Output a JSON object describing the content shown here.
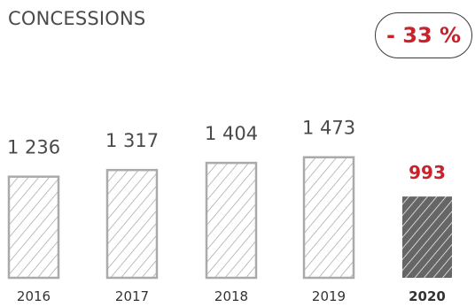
{
  "title": "CONCESSIONS",
  "badge": {
    "text": "- 33 %"
  },
  "colors": {
    "title": "#4a4a4a",
    "bar_stroke": "#aaaaaa",
    "hatch_light": "#9a9a9a",
    "highlight_bar": "#666666",
    "highlight_label": "#c8232b",
    "axis_text": "#333333"
  },
  "chart_data": {
    "type": "bar",
    "categories": [
      "2016",
      "2017",
      "2018",
      "2019",
      "2020"
    ],
    "values": [
      1236,
      1317,
      1404,
      1473,
      993
    ],
    "data_labels": [
      "1 236",
      "1 317",
      "1 404",
      "1 473",
      "993"
    ],
    "highlight_index": 4,
    "title": "CONCESSIONS",
    "xlabel": "",
    "ylabel": "",
    "grid": false,
    "legend": "none"
  }
}
